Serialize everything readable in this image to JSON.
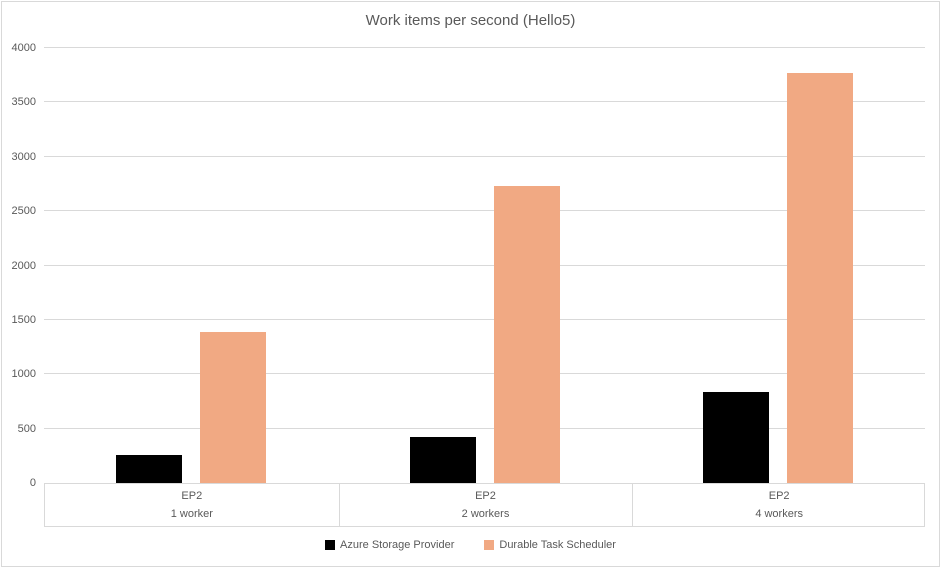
{
  "chart_data": {
    "type": "bar",
    "title": "Work items per second (Hello5)",
    "categories": [
      {
        "label": "EP2",
        "group": "1 worker"
      },
      {
        "label": "EP2",
        "group": "2 workers"
      },
      {
        "label": "EP2",
        "group": "4 workers"
      }
    ],
    "series": [
      {
        "name": "Azure Storage Provider",
        "color": "#000000",
        "values": [
          260,
          420,
          840
        ]
      },
      {
        "name": "Durable Task Scheduler",
        "color": "#F1A983",
        "values": [
          1390,
          2730,
          3770
        ]
      }
    ],
    "xlabel": "",
    "ylabel": "",
    "ylim": [
      0,
      4000
    ],
    "ytick_step": 500,
    "grid": true,
    "legend_position": "bottom"
  },
  "colors": {
    "text": "#595959",
    "gridline": "#D9D9D9",
    "axis_line": "#D9D9D9",
    "frame_border": "#D9D9D9",
    "background": "#FFFFFF"
  }
}
